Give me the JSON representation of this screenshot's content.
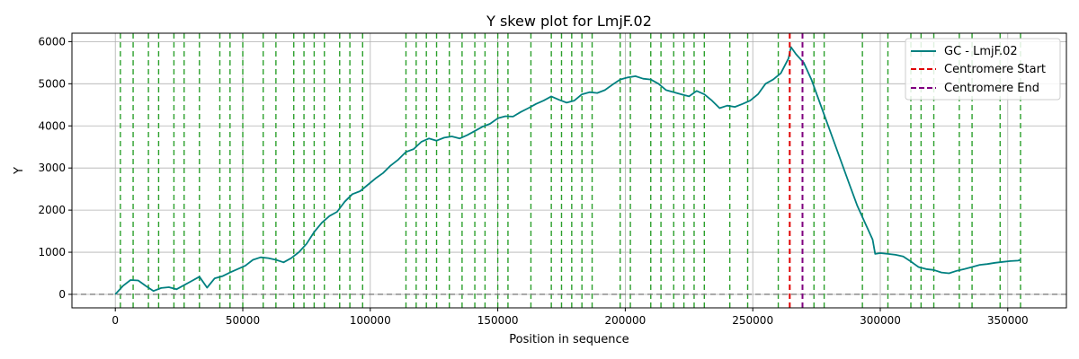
{
  "chart_data": {
    "type": "line",
    "title": "Y skew plot for LmjF.02",
    "xlabel": "Position in sequence",
    "ylabel": "Y",
    "xlim": [
      -17000,
      373000
    ],
    "ylim": [
      -320,
      6200
    ],
    "xticks": [
      0,
      50000,
      100000,
      150000,
      200000,
      250000,
      300000,
      350000
    ],
    "xtick_labels": [
      "0",
      "50000",
      "100000",
      "150000",
      "200000",
      "250000",
      "300000",
      "350000"
    ],
    "yticks": [
      0,
      1000,
      2000,
      3000,
      4000,
      5000,
      6000
    ],
    "ytick_labels": [
      "0",
      "1000",
      "2000",
      "3000",
      "4000",
      "5000",
      "6000"
    ],
    "grid": true,
    "legend_position": "top-right",
    "colors": {
      "series": "#008080",
      "centromere_start": "#e00000",
      "centromere_end": "#800080",
      "marker_lines": "#2ca02c",
      "zero_line": "#808080",
      "grid": "#b0b0b0"
    },
    "series": [
      {
        "name": "GC - LmjF.02",
        "x": [
          0,
          3000,
          6000,
          9000,
          12000,
          15000,
          18000,
          21000,
          24000,
          27000,
          30000,
          33000,
          36000,
          39000,
          42000,
          45000,
          48000,
          51000,
          54000,
          57000,
          60000,
          63000,
          66000,
          69000,
          72000,
          75000,
          78000,
          81000,
          84000,
          87000,
          90000,
          93000,
          96000,
          99000,
          102000,
          105000,
          108000,
          111000,
          114000,
          117000,
          120000,
          123000,
          126000,
          129000,
          132000,
          135000,
          138000,
          141000,
          144000,
          147000,
          150000,
          153000,
          156000,
          159000,
          162000,
          165000,
          168000,
          171000,
          174000,
          177000,
          180000,
          183000,
          186000,
          189000,
          192000,
          195000,
          198000,
          201000,
          204000,
          207000,
          210000,
          213000,
          216000,
          219000,
          222000,
          225000,
          228000,
          231000,
          234000,
          237000,
          240000,
          243000,
          246000,
          249000,
          252000,
          255000,
          258000,
          261000,
          264000,
          265000,
          267000,
          270000,
          273000,
          276000,
          279000,
          282000,
          285000,
          288000,
          291000,
          294000,
          297000,
          298000,
          300000,
          303000,
          306000,
          309000,
          312000,
          315000,
          318000,
          321000,
          324000,
          327000,
          330000,
          333000,
          336000,
          339000,
          342000,
          345000,
          348000,
          351000,
          354000,
          355000
        ],
        "values": [
          0,
          200,
          340,
          330,
          200,
          80,
          150,
          170,
          120,
          220,
          320,
          420,
          160,
          380,
          430,
          520,
          600,
          680,
          820,
          880,
          860,
          820,
          760,
          860,
          1000,
          1200,
          1480,
          1700,
          1860,
          1960,
          2200,
          2380,
          2450,
          2600,
          2750,
          2880,
          3060,
          3200,
          3380,
          3450,
          3620,
          3700,
          3650,
          3720,
          3750,
          3700,
          3780,
          3880,
          3980,
          4050,
          4180,
          4230,
          4220,
          4330,
          4420,
          4520,
          4600,
          4700,
          4620,
          4550,
          4600,
          4750,
          4800,
          4780,
          4850,
          4980,
          5100,
          5150,
          5180,
          5120,
          5100,
          5000,
          4850,
          4800,
          4750,
          4700,
          4830,
          4750,
          4600,
          4420,
          4480,
          4450,
          4520,
          4600,
          4750,
          5000,
          5100,
          5250,
          5600,
          5870,
          5700,
          5500,
          5100,
          4600,
          4100,
          3600,
          3100,
          2600,
          2100,
          1700,
          1300,
          960,
          980,
          960,
          940,
          900,
          780,
          650,
          600,
          580,
          520,
          500,
          560,
          600,
          650,
          700,
          720,
          750,
          770,
          790,
          800,
          820
        ]
      }
    ],
    "centromere_start": 264500,
    "centromere_end": 269500,
    "vertical_markers": [
      2000,
      7000,
      13000,
      17000,
      23000,
      27000,
      33000,
      41000,
      45000,
      50000,
      58000,
      63000,
      70000,
      74000,
      78000,
      82000,
      88000,
      92000,
      97000,
      114000,
      118000,
      122000,
      126000,
      131000,
      136000,
      141000,
      145000,
      150000,
      154000,
      163000,
      171000,
      175000,
      179000,
      183000,
      187000,
      198000,
      202000,
      210000,
      214000,
      219000,
      223000,
      227000,
      231000,
      241000,
      248000,
      260000,
      269500,
      274000,
      278000,
      293000,
      303000,
      312000,
      316000,
      321000,
      331000,
      336000,
      347000,
      355000
    ],
    "legend": [
      "GC - LmjF.02",
      "Centromere Start",
      "Centromere End"
    ]
  }
}
